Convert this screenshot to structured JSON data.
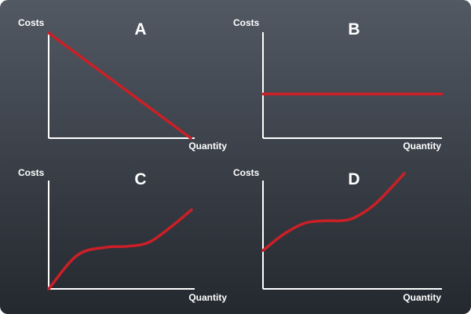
{
  "colors": {
    "background_top": "#525963",
    "background_bottom": "#24282f",
    "axis": "#ffffff",
    "curve": "#cc1f26"
  },
  "chart_data": [
    {
      "type": "line",
      "panel": "A",
      "xlabel": "Quantity",
      "ylabel": "Costs",
      "shape": "linear-decreasing",
      "x": [
        0,
        1
      ],
      "y": [
        1,
        0
      ]
    },
    {
      "type": "line",
      "panel": "B",
      "xlabel": "Quantity",
      "ylabel": "Costs",
      "shape": "constant",
      "x": [
        0,
        1
      ],
      "y": [
        0.42,
        0.42
      ]
    },
    {
      "type": "line",
      "panel": "C",
      "xlabel": "Quantity",
      "ylabel": "Costs",
      "shape": "cubic-starting-at-origin",
      "x": [
        0,
        0.2,
        0.4,
        0.55,
        0.7,
        0.85,
        1
      ],
      "y": [
        0,
        0.34,
        0.42,
        0.43,
        0.47,
        0.62,
        0.8
      ]
    },
    {
      "type": "line",
      "panel": "D",
      "xlabel": "Quantity",
      "ylabel": "Costs",
      "shape": "cubic-with-positive-intercept",
      "x": [
        0,
        0.15,
        0.3,
        0.45,
        0.55,
        0.65,
        0.8,
        1
      ],
      "y": [
        0.35,
        0.5,
        0.6,
        0.62,
        0.62,
        0.65,
        0.78,
        1.05
      ]
    }
  ]
}
